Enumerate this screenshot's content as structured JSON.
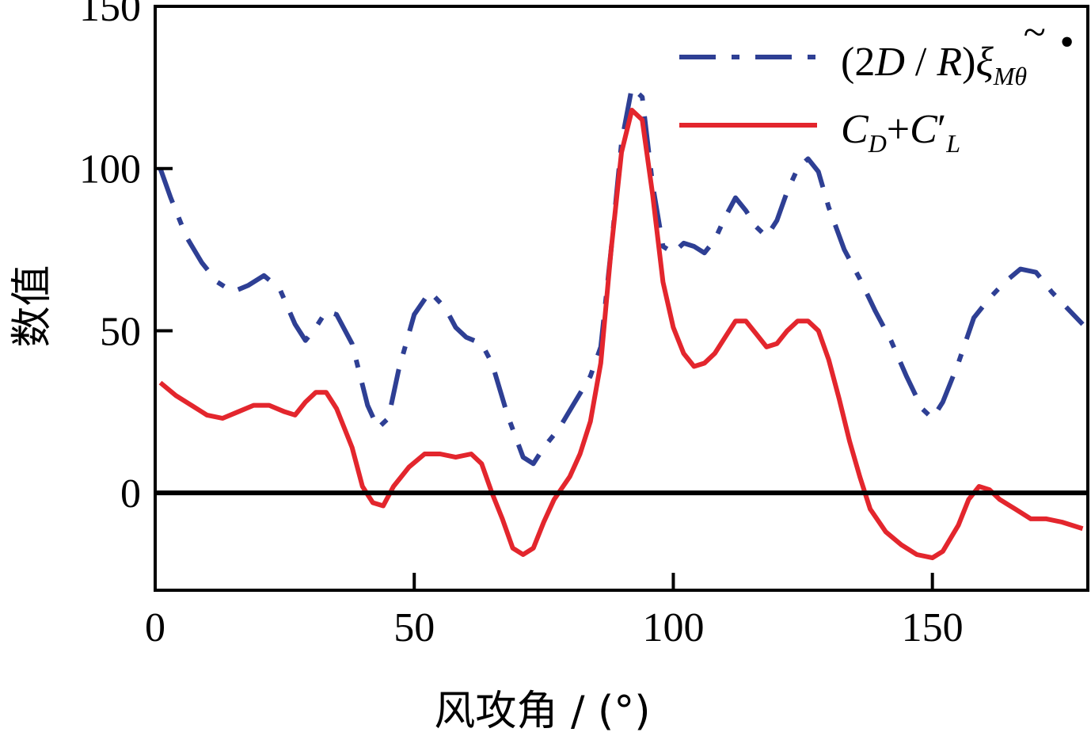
{
  "chart_data": {
    "type": "line",
    "xlabel": "风攻角 / (°)",
    "ylabel": "数值",
    "xlim": [
      0,
      180
    ],
    "ylim": [
      -30,
      150
    ],
    "x_ticks": [
      0,
      50,
      100,
      150
    ],
    "y_ticks": [
      0,
      50,
      100,
      150
    ],
    "reference_line": {
      "y": 0,
      "color": "#000000"
    },
    "grid": false,
    "legend_position": "top-right",
    "series": [
      {
        "name": "(2D / R)ξ̃Mθ̇",
        "name_parts": {
          "open": "(2",
          "D": "D",
          "slash": " / ",
          "R": "R",
          "close": ")",
          "xi": "ξ",
          "tilde": "~",
          "subscript": "Mθ",
          "dot": "•"
        },
        "color": "#2e3f94",
        "style": "dashdot",
        "points": [
          [
            1,
            100
          ],
          [
            3,
            91
          ],
          [
            6,
            79
          ],
          [
            9,
            71
          ],
          [
            12,
            65
          ],
          [
            15,
            62
          ],
          [
            18,
            64
          ],
          [
            21,
            67
          ],
          [
            24,
            63
          ],
          [
            27,
            52
          ],
          [
            29,
            47
          ],
          [
            31,
            51
          ],
          [
            33,
            56
          ],
          [
            35,
            55
          ],
          [
            38,
            46
          ],
          [
            41,
            27
          ],
          [
            43,
            20
          ],
          [
            45,
            23
          ],
          [
            47,
            38
          ],
          [
            50,
            55
          ],
          [
            53,
            62
          ],
          [
            56,
            57
          ],
          [
            58,
            51
          ],
          [
            60,
            48
          ],
          [
            63,
            46
          ],
          [
            65,
            40
          ],
          [
            68,
            24
          ],
          [
            71,
            11
          ],
          [
            73,
            9
          ],
          [
            75,
            14
          ],
          [
            78,
            20
          ],
          [
            81,
            28
          ],
          [
            84,
            36
          ],
          [
            86,
            45
          ],
          [
            88,
            75
          ],
          [
            90,
            108
          ],
          [
            92,
            125
          ],
          [
            94,
            122
          ],
          [
            96,
            95
          ],
          [
            98,
            76
          ],
          [
            100,
            74
          ],
          [
            102,
            77
          ],
          [
            104,
            76
          ],
          [
            106,
            74
          ],
          [
            108,
            78
          ],
          [
            110,
            85
          ],
          [
            112,
            91
          ],
          [
            114,
            87
          ],
          [
            116,
            82
          ],
          [
            118,
            79
          ],
          [
            120,
            84
          ],
          [
            122,
            93
          ],
          [
            124,
            100
          ],
          [
            126,
            103
          ],
          [
            128,
            99
          ],
          [
            130,
            88
          ],
          [
            133,
            75
          ],
          [
            136,
            66
          ],
          [
            139,
            56
          ],
          [
            142,
            47
          ],
          [
            145,
            36
          ],
          [
            148,
            26
          ],
          [
            150,
            23
          ],
          [
            152,
            28
          ],
          [
            155,
            40
          ],
          [
            158,
            54
          ],
          [
            161,
            60
          ],
          [
            164,
            65
          ],
          [
            167,
            69
          ],
          [
            170,
            68
          ],
          [
            173,
            62
          ],
          [
            176,
            57
          ],
          [
            179,
            52
          ]
        ]
      },
      {
        "name": "CD+C′L",
        "name_parts": {
          "C1": "C",
          "sub1": "D",
          "plus": "+",
          "C2": "C",
          "prime": "′",
          "sub2": "L"
        },
        "color": "#e3262d",
        "style": "solid",
        "points": [
          [
            1,
            34
          ],
          [
            4,
            30
          ],
          [
            7,
            27
          ],
          [
            10,
            24
          ],
          [
            13,
            23
          ],
          [
            16,
            25
          ],
          [
            19,
            27
          ],
          [
            22,
            27
          ],
          [
            25,
            25
          ],
          [
            27,
            24
          ],
          [
            29,
            28
          ],
          [
            31,
            31
          ],
          [
            33,
            31
          ],
          [
            35,
            26
          ],
          [
            38,
            14
          ],
          [
            40,
            2
          ],
          [
            42,
            -3
          ],
          [
            44,
            -4
          ],
          [
            46,
            2
          ],
          [
            49,
            8
          ],
          [
            52,
            12
          ],
          [
            55,
            12
          ],
          [
            58,
            11
          ],
          [
            61,
            12
          ],
          [
            63,
            9
          ],
          [
            65,
            0
          ],
          [
            67,
            -8
          ],
          [
            69,
            -17
          ],
          [
            71,
            -19
          ],
          [
            73,
            -17
          ],
          [
            75,
            -9
          ],
          [
            77,
            -2
          ],
          [
            80,
            5
          ],
          [
            82,
            12
          ],
          [
            84,
            22
          ],
          [
            86,
            40
          ],
          [
            88,
            75
          ],
          [
            90,
            105
          ],
          [
            92,
            118
          ],
          [
            94,
            115
          ],
          [
            96,
            92
          ],
          [
            98,
            65
          ],
          [
            100,
            51
          ],
          [
            102,
            43
          ],
          [
            104,
            39
          ],
          [
            106,
            40
          ],
          [
            108,
            43
          ],
          [
            110,
            48
          ],
          [
            112,
            53
          ],
          [
            114,
            53
          ],
          [
            116,
            49
          ],
          [
            118,
            45
          ],
          [
            120,
            46
          ],
          [
            122,
            50
          ],
          [
            124,
            53
          ],
          [
            126,
            53
          ],
          [
            128,
            50
          ],
          [
            130,
            41
          ],
          [
            132,
            29
          ],
          [
            134,
            16
          ],
          [
            136,
            5
          ],
          [
            138,
            -5
          ],
          [
            141,
            -12
          ],
          [
            144,
            -16
          ],
          [
            147,
            -19
          ],
          [
            150,
            -20
          ],
          [
            152,
            -18
          ],
          [
            155,
            -10
          ],
          [
            157,
            -2
          ],
          [
            159,
            2
          ],
          [
            161,
            1
          ],
          [
            163,
            -2
          ],
          [
            166,
            -5
          ],
          [
            169,
            -8
          ],
          [
            172,
            -8
          ],
          [
            175,
            -9
          ],
          [
            179,
            -11
          ]
        ]
      }
    ]
  }
}
